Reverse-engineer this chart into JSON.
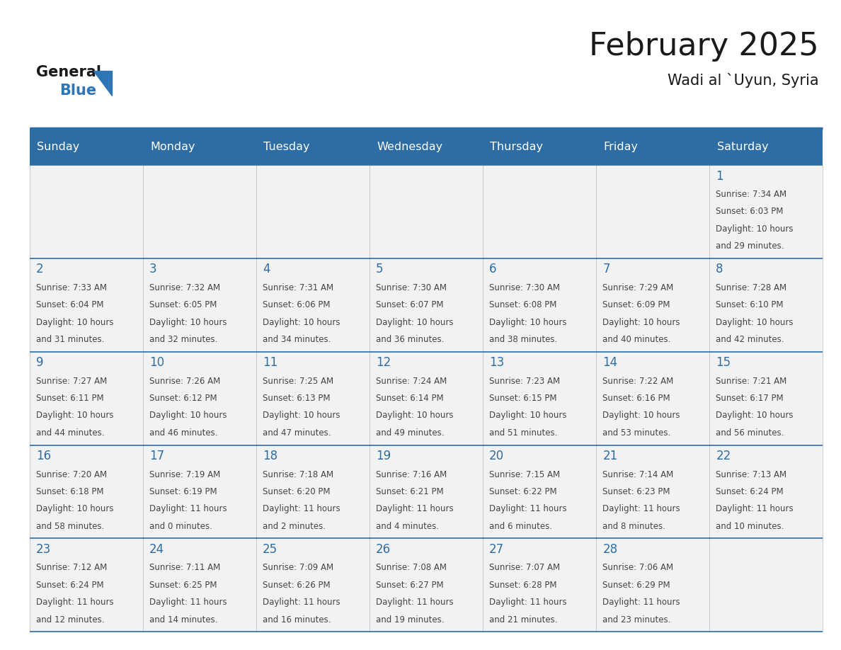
{
  "title": "February 2025",
  "subtitle": "Wadi al `Uyun, Syria",
  "days_of_week": [
    "Sunday",
    "Monday",
    "Tuesday",
    "Wednesday",
    "Thursday",
    "Friday",
    "Saturday"
  ],
  "header_bg": "#2E6DA4",
  "header_text": "#FFFFFF",
  "cell_bg_light": "#F2F2F2",
  "day_number_color": "#2E6DA4",
  "info_text_color": "#444444",
  "line_color": "#2E6DA4",
  "title_color": "#1a1a1a",
  "logo_general_color": "#1a1a1a",
  "logo_blue_color": "#2E75B6",
  "calendar_data": [
    [
      null,
      null,
      null,
      null,
      null,
      null,
      {
        "day": 1,
        "sunrise": "7:34 AM",
        "sunset": "6:03 PM",
        "daylight_h": "10 hours",
        "daylight_m": "and 29 minutes."
      }
    ],
    [
      {
        "day": 2,
        "sunrise": "7:33 AM",
        "sunset": "6:04 PM",
        "daylight_h": "10 hours",
        "daylight_m": "and 31 minutes."
      },
      {
        "day": 3,
        "sunrise": "7:32 AM",
        "sunset": "6:05 PM",
        "daylight_h": "10 hours",
        "daylight_m": "and 32 minutes."
      },
      {
        "day": 4,
        "sunrise": "7:31 AM",
        "sunset": "6:06 PM",
        "daylight_h": "10 hours",
        "daylight_m": "and 34 minutes."
      },
      {
        "day": 5,
        "sunrise": "7:30 AM",
        "sunset": "6:07 PM",
        "daylight_h": "10 hours",
        "daylight_m": "and 36 minutes."
      },
      {
        "day": 6,
        "sunrise": "7:30 AM",
        "sunset": "6:08 PM",
        "daylight_h": "10 hours",
        "daylight_m": "and 38 minutes."
      },
      {
        "day": 7,
        "sunrise": "7:29 AM",
        "sunset": "6:09 PM",
        "daylight_h": "10 hours",
        "daylight_m": "and 40 minutes."
      },
      {
        "day": 8,
        "sunrise": "7:28 AM",
        "sunset": "6:10 PM",
        "daylight_h": "10 hours",
        "daylight_m": "and 42 minutes."
      }
    ],
    [
      {
        "day": 9,
        "sunrise": "7:27 AM",
        "sunset": "6:11 PM",
        "daylight_h": "10 hours",
        "daylight_m": "and 44 minutes."
      },
      {
        "day": 10,
        "sunrise": "7:26 AM",
        "sunset": "6:12 PM",
        "daylight_h": "10 hours",
        "daylight_m": "and 46 minutes."
      },
      {
        "day": 11,
        "sunrise": "7:25 AM",
        "sunset": "6:13 PM",
        "daylight_h": "10 hours",
        "daylight_m": "and 47 minutes."
      },
      {
        "day": 12,
        "sunrise": "7:24 AM",
        "sunset": "6:14 PM",
        "daylight_h": "10 hours",
        "daylight_m": "and 49 minutes."
      },
      {
        "day": 13,
        "sunrise": "7:23 AM",
        "sunset": "6:15 PM",
        "daylight_h": "10 hours",
        "daylight_m": "and 51 minutes."
      },
      {
        "day": 14,
        "sunrise": "7:22 AM",
        "sunset": "6:16 PM",
        "daylight_h": "10 hours",
        "daylight_m": "and 53 minutes."
      },
      {
        "day": 15,
        "sunrise": "7:21 AM",
        "sunset": "6:17 PM",
        "daylight_h": "10 hours",
        "daylight_m": "and 56 minutes."
      }
    ],
    [
      {
        "day": 16,
        "sunrise": "7:20 AM",
        "sunset": "6:18 PM",
        "daylight_h": "10 hours",
        "daylight_m": "and 58 minutes."
      },
      {
        "day": 17,
        "sunrise": "7:19 AM",
        "sunset": "6:19 PM",
        "daylight_h": "11 hours",
        "daylight_m": "and 0 minutes."
      },
      {
        "day": 18,
        "sunrise": "7:18 AM",
        "sunset": "6:20 PM",
        "daylight_h": "11 hours",
        "daylight_m": "and 2 minutes."
      },
      {
        "day": 19,
        "sunrise": "7:16 AM",
        "sunset": "6:21 PM",
        "daylight_h": "11 hours",
        "daylight_m": "and 4 minutes."
      },
      {
        "day": 20,
        "sunrise": "7:15 AM",
        "sunset": "6:22 PM",
        "daylight_h": "11 hours",
        "daylight_m": "and 6 minutes."
      },
      {
        "day": 21,
        "sunrise": "7:14 AM",
        "sunset": "6:23 PM",
        "daylight_h": "11 hours",
        "daylight_m": "and 8 minutes."
      },
      {
        "day": 22,
        "sunrise": "7:13 AM",
        "sunset": "6:24 PM",
        "daylight_h": "11 hours",
        "daylight_m": "and 10 minutes."
      }
    ],
    [
      {
        "day": 23,
        "sunrise": "7:12 AM",
        "sunset": "6:24 PM",
        "daylight_h": "11 hours",
        "daylight_m": "and 12 minutes."
      },
      {
        "day": 24,
        "sunrise": "7:11 AM",
        "sunset": "6:25 PM",
        "daylight_h": "11 hours",
        "daylight_m": "and 14 minutes."
      },
      {
        "day": 25,
        "sunrise": "7:09 AM",
        "sunset": "6:26 PM",
        "daylight_h": "11 hours",
        "daylight_m": "and 16 minutes."
      },
      {
        "day": 26,
        "sunrise": "7:08 AM",
        "sunset": "6:27 PM",
        "daylight_h": "11 hours",
        "daylight_m": "and 19 minutes."
      },
      {
        "day": 27,
        "sunrise": "7:07 AM",
        "sunset": "6:28 PM",
        "daylight_h": "11 hours",
        "daylight_m": "and 21 minutes."
      },
      {
        "day": 28,
        "sunrise": "7:06 AM",
        "sunset": "6:29 PM",
        "daylight_h": "11 hours",
        "daylight_m": "and 23 minutes."
      },
      null
    ]
  ]
}
